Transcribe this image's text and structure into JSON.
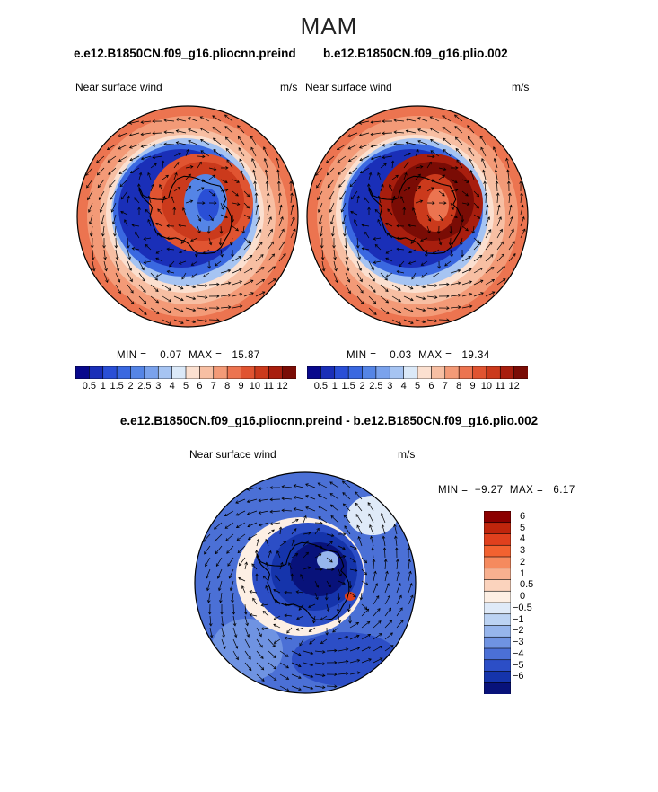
{
  "page": {
    "season": "MAM"
  },
  "titles": {
    "left_case": "e.e12.B1850CN.f09_g16.pliocnn.preind",
    "right_case": "b.e12.B1850CN.f09_g16.plio.002",
    "diff_case": "e.e12.B1850CN.f09_g16.pliocnn.preind - b.e12.B1850CN.f09_g16.plio.002"
  },
  "chart_data": [
    {
      "type": "heatmap",
      "projection": "south-polar-stereographic",
      "variable": "Near surface wind",
      "units": "m/s",
      "min_label": "MIN =",
      "min_value": "0.07",
      "max_label": "MAX =",
      "max_value": "15.87",
      "colorbar_levels": [
        0.5,
        1,
        1.5,
        2,
        2.5,
        3,
        4,
        5,
        6,
        7,
        8,
        9,
        10,
        11,
        12
      ],
      "colorbar_tick_labels": [
        "0.5",
        "1",
        "1.5",
        "2",
        "2.5",
        "3",
        "4",
        "5",
        "6",
        "7",
        "8",
        "9",
        "10",
        "11",
        "12"
      ],
      "colorbar_colors": [
        "#08088c",
        "#1a2fb8",
        "#2a4fd6",
        "#3a68e0",
        "#5585e6",
        "#7aa2ec",
        "#a6c4f2",
        "#dbe9f8",
        "#fbe0d0",
        "#f7bfa3",
        "#f39a77",
        "#ec7450",
        "#e05431",
        "#cb3a1c",
        "#a81e0e",
        "#7a0c05"
      ],
      "overlay": "wind vectors",
      "colorbar_orientation": "horizontal"
    },
    {
      "type": "heatmap",
      "projection": "south-polar-stereographic",
      "variable": "Near surface wind",
      "units": "m/s",
      "min_label": "MIN =",
      "min_value": "0.03",
      "max_label": "MAX =",
      "max_value": "19.34",
      "colorbar_levels": [
        0.5,
        1,
        1.5,
        2,
        2.5,
        3,
        4,
        5,
        6,
        7,
        8,
        9,
        10,
        11,
        12
      ],
      "colorbar_tick_labels": [
        "0.5",
        "1",
        "1.5",
        "2",
        "2.5",
        "3",
        "4",
        "5",
        "6",
        "7",
        "8",
        "9",
        "10",
        "11",
        "12"
      ],
      "colorbar_colors": [
        "#08088c",
        "#1a2fb8",
        "#2a4fd6",
        "#3a68e0",
        "#5585e6",
        "#7aa2ec",
        "#a6c4f2",
        "#dbe9f8",
        "#fbe0d0",
        "#f7bfa3",
        "#f39a77",
        "#ec7450",
        "#e05431",
        "#cb3a1c",
        "#a81e0e",
        "#7a0c05"
      ],
      "overlay": "wind vectors",
      "colorbar_orientation": "horizontal"
    },
    {
      "type": "heatmap",
      "projection": "south-polar-stereographic",
      "variable": "Near surface wind",
      "units": "m/s",
      "min_label": "MIN =",
      "min_value": "−9.27",
      "max_label": "MAX =",
      "max_value": "6.17",
      "colorbar_levels": [
        -6,
        -5,
        -4,
        -3,
        -2,
        -1,
        -0.5,
        0,
        0.5,
        1,
        2,
        3,
        4,
        5,
        6
      ],
      "colorbar_tick_labels": [
        "6",
        "5",
        "4",
        "3",
        "2",
        "1",
        "0.5",
        "0",
        "−0.5",
        "−1",
        "−2",
        "−3",
        "−4",
        "−5",
        "−6"
      ],
      "colorbar_colors": [
        "#8b0000",
        "#c0250c",
        "#e0401d",
        "#f26230",
        "#f58a5e",
        "#f8b08f",
        "#fbd3bd",
        "#fdefe4",
        "#dfeaf8",
        "#bcd3f3",
        "#96b5ec",
        "#6f93e2",
        "#4b70d6",
        "#2c4ec6",
        "#1534ab",
        "#08127a"
      ],
      "overlay": "wind vectors",
      "colorbar_orientation": "vertical"
    }
  ]
}
